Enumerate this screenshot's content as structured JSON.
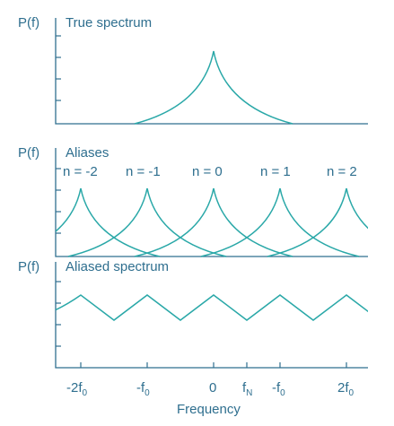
{
  "colors": {
    "axis": "#2f6f8f",
    "curve": "#2aa8a8",
    "text": "#2f6f8f",
    "background": "#ffffff"
  },
  "panels": [
    {
      "ylabel": "P(f)",
      "title": "True spectrum"
    },
    {
      "ylabel": "P(f)",
      "title": "Aliases",
      "alias_labels": [
        "n = -2",
        "n = -1",
        "n = 0",
        "n = 1",
        "n = 2"
      ]
    },
    {
      "ylabel": "P(f)",
      "title": "Aliased spectrum"
    }
  ],
  "x_axis": {
    "label": "Frequency",
    "ticks": [
      {
        "main": "-2f",
        "sub": "0"
      },
      {
        "main": "-f",
        "sub": "0"
      },
      {
        "main": "0",
        "sub": ""
      },
      {
        "main": "f",
        "sub": "N"
      },
      {
        "main": "-f",
        "sub": "0"
      },
      {
        "main": "2f",
        "sub": "0"
      }
    ]
  }
}
